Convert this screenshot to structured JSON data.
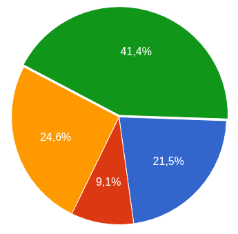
{
  "chart_data": {
    "type": "pie",
    "values": [
      21.5,
      9.1,
      24.6,
      41.4
    ],
    "value_labels": [
      "21,5%",
      "9,1%",
      "24,6%",
      "41,4%"
    ],
    "colors": [
      "#3366cc",
      "#dc3912",
      "#ff9900",
      "#109618"
    ],
    "data_labels": true,
    "legend": false
  }
}
